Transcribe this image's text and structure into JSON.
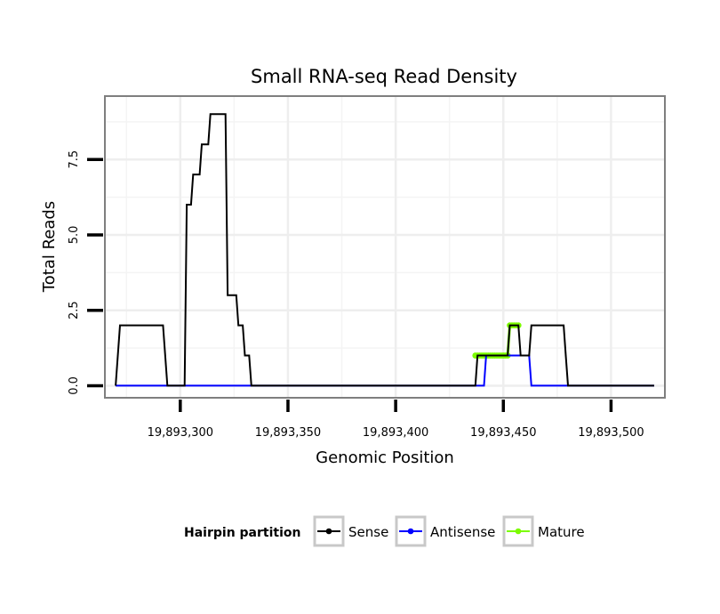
{
  "chart_data": {
    "type": "line",
    "title": "Small RNA-seq Read Density",
    "xlabel": "Genomic Position",
    "ylabel": "Total Reads",
    "xlim": [
      19893265,
      19893525
    ],
    "ylim": [
      -0.4,
      9.6
    ],
    "x_ticks": [
      19893300,
      19893350,
      19893400,
      19893450,
      19893500
    ],
    "x_tick_labels": [
      "19,893,300",
      "19,893,350",
      "19,893,400",
      "19,893,450",
      "19,893,500"
    ],
    "y_ticks": [
      0,
      2.5,
      5,
      7.5
    ],
    "y_tick_labels": [
      "0.0",
      "2.5",
      "5.0",
      "7.5"
    ],
    "grid": true,
    "legend_position": "bottom",
    "legend_title": "Hairpin partition",
    "series": [
      {
        "name": "Sense",
        "color": "#000000",
        "points": [
          [
            19893270,
            0
          ],
          [
            19893272,
            2
          ],
          [
            19893292,
            2
          ],
          [
            19893294,
            0
          ],
          [
            19893302,
            0
          ],
          [
            19893303,
            6
          ],
          [
            19893305,
            6
          ],
          [
            19893306,
            7
          ],
          [
            19893309,
            7
          ],
          [
            19893310,
            8
          ],
          [
            19893313,
            8
          ],
          [
            19893314,
            9
          ],
          [
            19893321,
            9
          ],
          [
            19893322,
            3
          ],
          [
            19893326,
            3
          ],
          [
            19893327,
            2
          ],
          [
            19893329,
            2
          ],
          [
            19893330,
            1
          ],
          [
            19893332,
            1
          ],
          [
            19893333,
            0
          ],
          [
            19893437,
            0
          ],
          [
            19893438,
            1
          ],
          [
            19893452,
            1
          ],
          [
            19893453,
            2
          ],
          [
            19893457,
            2
          ],
          [
            19893458,
            1
          ],
          [
            19893462,
            1
          ],
          [
            19893463,
            2
          ],
          [
            19893478,
            2
          ],
          [
            19893479,
            1
          ],
          [
            19893480,
            0
          ],
          [
            19893520,
            0
          ]
        ]
      },
      {
        "name": "Antisense",
        "color": "#0000ff",
        "points": [
          [
            19893270,
            0
          ],
          [
            19893441,
            0
          ],
          [
            19893442,
            1
          ],
          [
            19893462,
            1
          ],
          [
            19893463,
            0
          ],
          [
            19893520,
            0
          ]
        ]
      },
      {
        "name": "Mature",
        "color": "#7cfc00",
        "points": [
          [
            19893437,
            1
          ],
          [
            19893438,
            1
          ],
          [
            19893439,
            1
          ],
          [
            19893440,
            1
          ],
          [
            19893441,
            1
          ],
          [
            19893442,
            1
          ],
          [
            19893443,
            1
          ],
          [
            19893444,
            1
          ],
          [
            19893445,
            1
          ],
          [
            19893446,
            1
          ],
          [
            19893447,
            1
          ],
          [
            19893448,
            1
          ],
          [
            19893449,
            1
          ],
          [
            19893450,
            1
          ],
          [
            19893451,
            1
          ],
          [
            19893452,
            1
          ],
          [
            19893453,
            2
          ],
          [
            19893454,
            2
          ],
          [
            19893455,
            2
          ],
          [
            19893456,
            2
          ],
          [
            19893457,
            2
          ]
        ]
      }
    ]
  }
}
